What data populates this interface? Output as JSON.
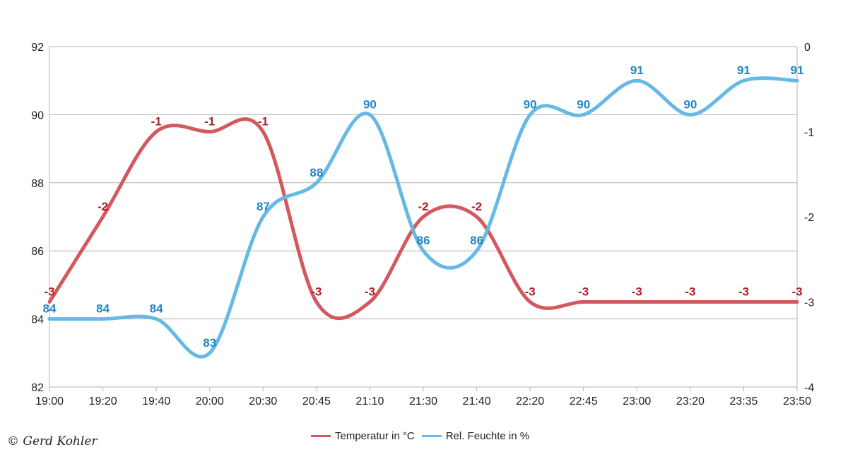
{
  "chart_data": {
    "type": "line",
    "categories": [
      "19:00",
      "19:20",
      "19:40",
      "20:00",
      "20:30",
      "20:45",
      "21:10",
      "21:30",
      "21:40",
      "22:20",
      "22:45",
      "23:00",
      "23:20",
      "23:35",
      "23:50"
    ],
    "y_left": {
      "min": 82,
      "max": 92,
      "ticks": [
        "82",
        "84",
        "86",
        "88",
        "90",
        "92"
      ]
    },
    "y_right": {
      "min": -4,
      "max": 0,
      "ticks": [
        "-4",
        "-3",
        "-2",
        "-1",
        "0"
      ]
    },
    "grid": true,
    "legend_position": "bottom",
    "series": [
      {
        "name": "Temperatur in °C",
        "axis": "right",
        "color": "#d2595e",
        "values": [
          -3,
          -2,
          -1,
          -1,
          -1,
          -3,
          -3,
          -2,
          -2,
          -3,
          -3,
          -3,
          -3,
          -3,
          -3
        ],
        "labels": [
          "-3",
          "-2",
          "-1",
          "-1",
          "-1",
          "-3",
          "-3",
          "-2",
          "-2",
          "-3",
          "-3",
          "-3",
          "-3",
          "-3",
          "-3"
        ]
      },
      {
        "name": "Rel. Feuchte in %",
        "axis": "left",
        "color": "#65b9e4",
        "label_color": "#2086c8",
        "values": [
          84,
          84,
          84,
          83,
          87,
          88,
          90,
          86,
          86,
          90,
          90,
          91,
          90,
          91,
          91
        ],
        "labels": [
          "84",
          "84",
          "84",
          "83",
          "87",
          "88",
          "90",
          "86",
          "86",
          "90",
          "90",
          "91",
          "90",
          "91",
          "91"
        ]
      }
    ]
  },
  "copyright": "© Gerd Kohler"
}
